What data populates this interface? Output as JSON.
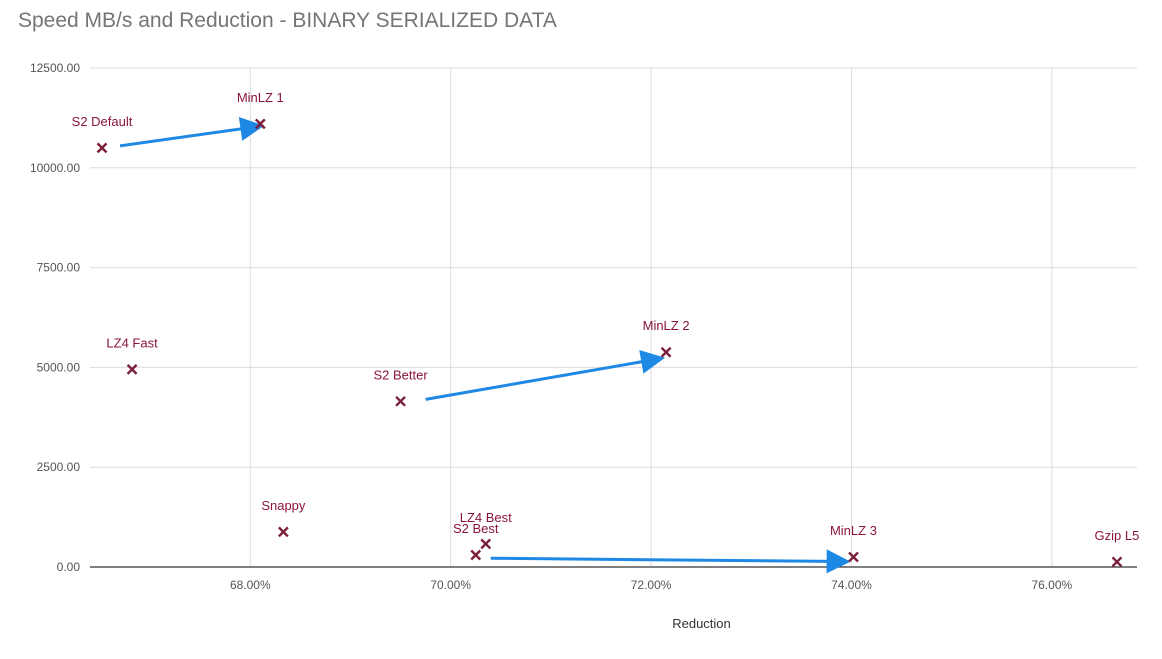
{
  "chart_data": {
    "type": "scatter",
    "title": "Speed MB/s and Reduction - BINARY SERIALIZED DATA",
    "xlabel": "Reduction",
    "ylabel": "",
    "xlim": [
      66.4,
      76.85
    ],
    "ylim": [
      0,
      12500
    ],
    "x_ticks": [
      {
        "value": 68,
        "label": "68.00%"
      },
      {
        "value": 70,
        "label": "70.00%"
      },
      {
        "value": 72,
        "label": "72.00%"
      },
      {
        "value": 74,
        "label": "74.00%"
      },
      {
        "value": 76,
        "label": "76.00%"
      }
    ],
    "y_ticks": [
      {
        "value": 0,
        "label": "0.00"
      },
      {
        "value": 2500,
        "label": "2500.00"
      },
      {
        "value": 5000,
        "label": "5000.00"
      },
      {
        "value": 7500,
        "label": "7500.00"
      },
      {
        "value": 10000,
        "label": "10000.00"
      },
      {
        "value": 12500,
        "label": "12500.00"
      }
    ],
    "grid": true,
    "marker_color": "#7b1f3a",
    "label_color": "#8a1538",
    "arrow_color": "#1e88e5",
    "points": [
      {
        "name": "S2 Default",
        "x": 66.52,
        "y": 10500
      },
      {
        "name": "MinLZ 1",
        "x": 68.1,
        "y": 11100
      },
      {
        "name": "LZ4 Fast",
        "x": 66.82,
        "y": 4950
      },
      {
        "name": "S2 Better",
        "x": 69.5,
        "y": 4150
      },
      {
        "name": "MinLZ 2",
        "x": 72.15,
        "y": 5380
      },
      {
        "name": "Snappy",
        "x": 68.33,
        "y": 880
      },
      {
        "name": "LZ4 Best",
        "x": 70.35,
        "y": 580
      },
      {
        "name": "S2 Best",
        "x": 70.25,
        "y": 300
      },
      {
        "name": "MinLZ 3",
        "x": 74.02,
        "y": 250
      },
      {
        "name": "Gzip L5",
        "x": 76.65,
        "y": 130
      }
    ],
    "annotations": [
      {
        "type": "arrow",
        "from": [
          66.7,
          10550
        ],
        "to": [
          67.95,
          10990
        ]
      },
      {
        "type": "arrow",
        "from": [
          69.75,
          4200
        ],
        "to": [
          71.95,
          5160
        ]
      },
      {
        "type": "arrow",
        "from": [
          70.4,
          220
        ],
        "to": [
          73.8,
          140
        ]
      }
    ]
  }
}
